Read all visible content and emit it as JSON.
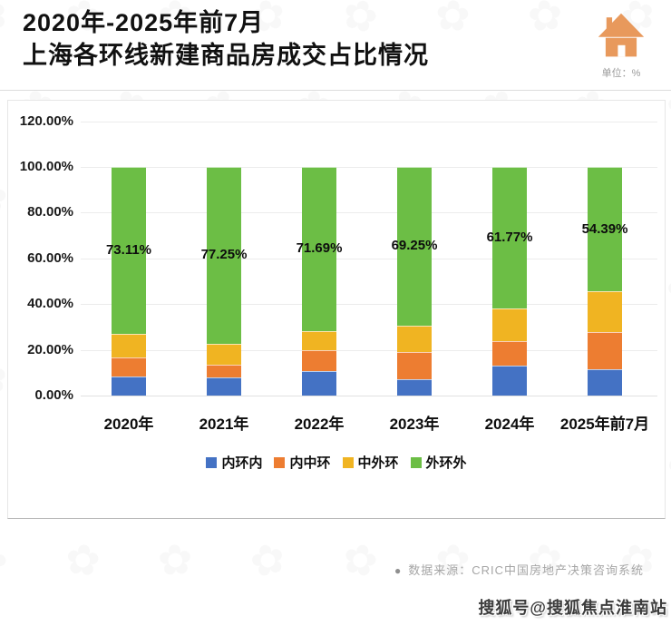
{
  "header": {
    "title_line1": "2020年-2025年前7月",
    "title_line2": "上海各环线新建商品房成交占比情况",
    "unit_label": "单位：%",
    "house_icon_color": "#E8995C"
  },
  "chart_data": {
    "type": "bar",
    "stacked": true,
    "title": "2020年-2025年前7月上海各环线新建商品房成交占比情况",
    "unit": "%",
    "categories": [
      "2020年",
      "2021年",
      "2022年",
      "2023年",
      "2024年",
      "2025年前7月"
    ],
    "series": [
      {
        "name": "内环内",
        "color": "#4472C4",
        "values": [
          8.5,
          7.8,
          10.7,
          7.2,
          13.1,
          11.4
        ]
      },
      {
        "name": "内中环",
        "color": "#ED7D31",
        "values": [
          8.3,
          5.8,
          9.3,
          11.8,
          10.8,
          16.2
        ]
      },
      {
        "name": "中外环",
        "color": "#F0B422",
        "values": [
          10.09,
          9.15,
          8.31,
          11.75,
          14.33,
          18.01
        ]
      },
      {
        "name": "外环外",
        "color": "#6CBE45",
        "values": [
          73.11,
          77.25,
          71.69,
          69.25,
          61.77,
          54.39
        ]
      }
    ],
    "data_labels": [
      "73.11%",
      "77.25%",
      "71.69%",
      "69.25%",
      "61.77%",
      "54.39%"
    ],
    "labeled_series": "外环外",
    "ytick_labels": [
      "0.00%",
      "20.00%",
      "40.00%",
      "60.00%",
      "80.00%",
      "100.00%",
      "120.00%"
    ],
    "ylim": [
      0,
      120
    ],
    "grid": true,
    "legend_position": "bottom"
  },
  "footer": {
    "source_bullet": "●",
    "source_text": "数据来源：CRIC中国房地产决策咨询系统",
    "watermark_text": "搜狐号@搜狐焦点淮南站"
  },
  "decor": {
    "pattern_glyph": "✿"
  }
}
